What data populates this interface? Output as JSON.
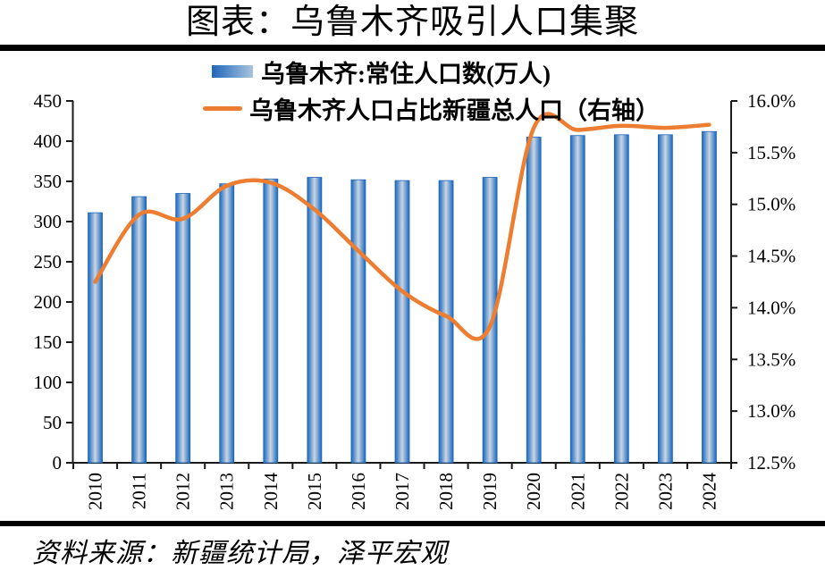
{
  "page": {
    "title": "图表：乌鲁木齐吸引人口集聚",
    "source": "资料来源：新疆统计局，泽平宏观"
  },
  "legend": {
    "bar_label": "乌鲁木齐:常住人口数(万人)",
    "line_label": "乌鲁木齐人口占比新疆总人口（右轴）"
  },
  "chart_data": {
    "type": "bar+line",
    "title": "图表：乌鲁木齐吸引人口集聚",
    "categories": [
      "2010",
      "2011",
      "2012",
      "2013",
      "2014",
      "2015",
      "2016",
      "2017",
      "2018",
      "2019",
      "2020",
      "2021",
      "2022",
      "2023",
      "2024"
    ],
    "series": [
      {
        "name": "乌鲁木齐:常住人口数(万人)",
        "type": "bar",
        "axis": "left",
        "values": [
          311,
          331,
          335,
          347,
          353,
          355,
          352,
          351,
          351,
          355,
          405,
          407,
          408,
          408,
          412
        ]
      },
      {
        "name": "乌鲁木齐人口占比新疆总人口（右轴）",
        "type": "line",
        "axis": "right",
        "values": [
          14.25,
          14.9,
          14.86,
          15.18,
          15.21,
          14.95,
          14.55,
          14.16,
          13.92,
          13.82,
          15.74,
          15.72,
          15.76,
          15.74,
          15.77
        ]
      }
    ],
    "left_axis": {
      "min": 0,
      "max": 450,
      "step": 50,
      "labels": [
        "0",
        "50",
        "100",
        "150",
        "200",
        "250",
        "300",
        "350",
        "400",
        "450"
      ]
    },
    "right_axis": {
      "min": 12.5,
      "max": 16.0,
      "step": 0.5,
      "labels": [
        "12.5%",
        "13.0%",
        "13.5%",
        "14.0%",
        "14.5%",
        "15.0%",
        "15.5%",
        "16.0%"
      ]
    },
    "grid": false,
    "legend_position": "top",
    "colors": {
      "bar_edge": "#1E66B8",
      "bar_bright": "#2F77C5",
      "bar_light": "#CBD5E2",
      "bar_legend_light": "#A9C3DF",
      "line": "#ED7D31",
      "axis": "#1a1a1a",
      "text": "#000000"
    }
  }
}
